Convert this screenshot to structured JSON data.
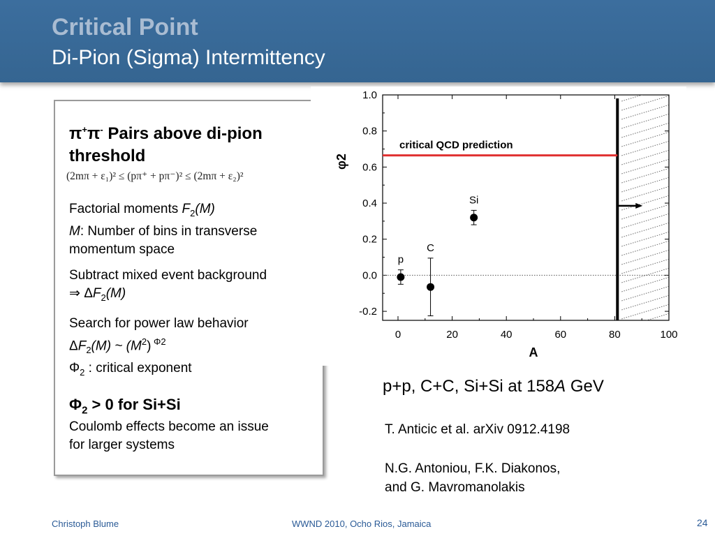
{
  "slide": {
    "title": "Critical Point",
    "subtitle": "Di-Pion (Sigma) Intermittency",
    "page_number": "24"
  },
  "textbox": {
    "heading_pi": "π",
    "heading_plus": "+",
    "heading_pi2": "π",
    "heading_minus": "-",
    "heading_rest": " Pairs above di-pion threshold",
    "formula": "(2mπ + ε₁)² ≤ (pπ⁺ + pπ⁻)² ≤ (2mπ + ε₂)²",
    "p1_a": "Factorial moments ",
    "p1_F": "F",
    "p1_sub": "2",
    "p1_M": "(M)",
    "p1_M2": "M",
    "p1_b": ": Number of bins in transverse momentum space",
    "p2_a": "Subtract mixed event background",
    "p2_b": "⇒ Δ",
    "p2_F": "F",
    "p2_sub": "2",
    "p2_M": "(M)",
    "p3_a": "Search for power law behavior",
    "p3_b": "Δ",
    "p3_F": "F",
    "p3_sub": "2",
    "p3_c": "(M) ~ (M",
    "p3_sup2": "2",
    "p3_d": ")",
    "p3_supphi": " Φ2",
    "p4_a": "Φ",
    "p4_sub": "2",
    "p4_b": " : critical exponent",
    "conclusion_a": "Φ",
    "conclusion_sub": "2",
    "conclusion_b": " > 0 for Si+Si",
    "conclusion_note": "Coulomb effects become an issue for larger systems"
  },
  "caption": {
    "text_a": "p+p, C+C, Si+Si at 158",
    "text_A": "A",
    "text_b": " GeV"
  },
  "references": {
    "ref1": "T. Anticic et al. arXiv 0912.4198",
    "ref2_line1": "N.G. Antoniou, F.K. Diakonos,",
    "ref2_line2": "and G. Mavromanolakis"
  },
  "footer": {
    "author": "Christoph Blume",
    "event": "WWND 2010, Ocho Rios, Jamaica"
  },
  "chart_data": {
    "type": "scatter",
    "xlabel": "A",
    "ylabel": "φ2",
    "xlim": [
      0,
      100
    ],
    "ylim": [
      -0.25,
      1.0
    ],
    "xticks": [
      "0",
      "20",
      "40",
      "60",
      "80",
      "100"
    ],
    "yticks": [
      "-0.2",
      "0.0",
      "0.2",
      "0.4",
      "0.6",
      "0.8",
      "1.0"
    ],
    "points": [
      {
        "label": "p",
        "x": 1,
        "y": -0.01,
        "err": 0.04
      },
      {
        "label": "C",
        "x": 12,
        "y": -0.065,
        "err_up": 0.16,
        "err_down": 0.16
      },
      {
        "label": "Si",
        "x": 28,
        "y": 0.32,
        "err": 0.04
      }
    ],
    "prediction_line": {
      "label": "critical  QCD  prediction",
      "y": 0.665,
      "color": "#e03030"
    },
    "vertical_limit_x": 81,
    "zero_line": 0.0
  }
}
